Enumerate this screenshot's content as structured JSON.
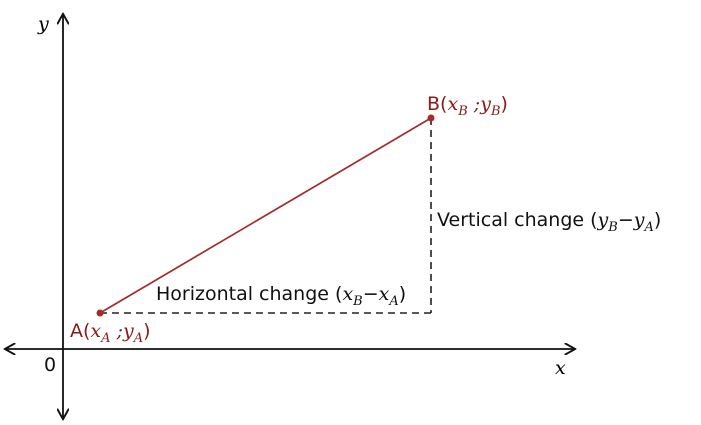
{
  "axes": {
    "x_label": "x",
    "y_label": "y",
    "origin_label": "0"
  },
  "points": {
    "A": {
      "letter": "A",
      "open": "(",
      "x": "x",
      "x_sub": "A",
      "sep": " ;",
      "y": "y",
      "y_sub": "A",
      "close": ")"
    },
    "B": {
      "letter": "B",
      "open": "(",
      "x": "x",
      "x_sub": "B",
      "sep": " ;",
      "y": "y",
      "y_sub": "B",
      "close": ")"
    }
  },
  "horizontal": {
    "text": "Horizontal change (",
    "a": "x",
    "a_sub": "B",
    "minus": "−",
    "b": "x",
    "b_sub": "A",
    "close": ")"
  },
  "vertical": {
    "text": "Vertical change (",
    "a": "y",
    "a_sub": "B",
    "minus": "−",
    "b": "y",
    "b_sub": "A",
    "close": ")"
  },
  "colors": {
    "segment": "#a52a2a",
    "axis": "#111111",
    "dash": "#222222",
    "point_label": "#8b1a1a"
  }
}
